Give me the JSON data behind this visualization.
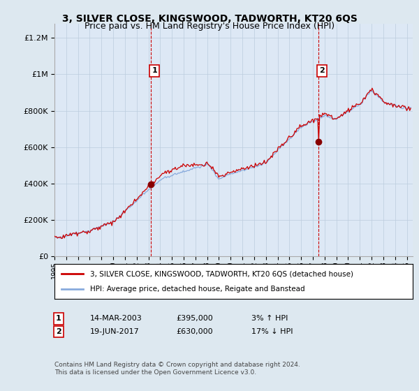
{
  "title": "3, SILVER CLOSE, KINGSWOOD, TADWORTH, KT20 6QS",
  "subtitle": "Price paid vs. HM Land Registry's House Price Index (HPI)",
  "ytick_values": [
    0,
    200000,
    400000,
    600000,
    800000,
    1000000,
    1200000
  ],
  "ylim": [
    0,
    1280000
  ],
  "xlim_start": 1995.0,
  "xlim_end": 2025.5,
  "sale1": {
    "date_num": 2003.21,
    "price": 395000,
    "label": "1",
    "date_str": "14-MAR-2003",
    "hpi_pct": "3% ↑ HPI"
  },
  "sale2": {
    "date_num": 2017.46,
    "price": 630000,
    "label": "2",
    "date_str": "19-JUN-2017",
    "hpi_pct": "17% ↓ HPI"
  },
  "legend_house": "3, SILVER CLOSE, KINGSWOOD, TADWORTH, KT20 6QS (detached house)",
  "legend_hpi": "HPI: Average price, detached house, Reigate and Banstead",
  "footnote1": "Contains HM Land Registry data © Crown copyright and database right 2024.",
  "footnote2": "This data is licensed under the Open Government Licence v3.0.",
  "house_color": "#cc0000",
  "hpi_color": "#88aadd",
  "dashed_color": "#cc0000",
  "bg_color": "#dde8f0",
  "plot_bg": "#dde8f5",
  "grid_color": "#bbccdd",
  "sale_marker_color": "#880000",
  "sale_box_color": "#cc0000"
}
